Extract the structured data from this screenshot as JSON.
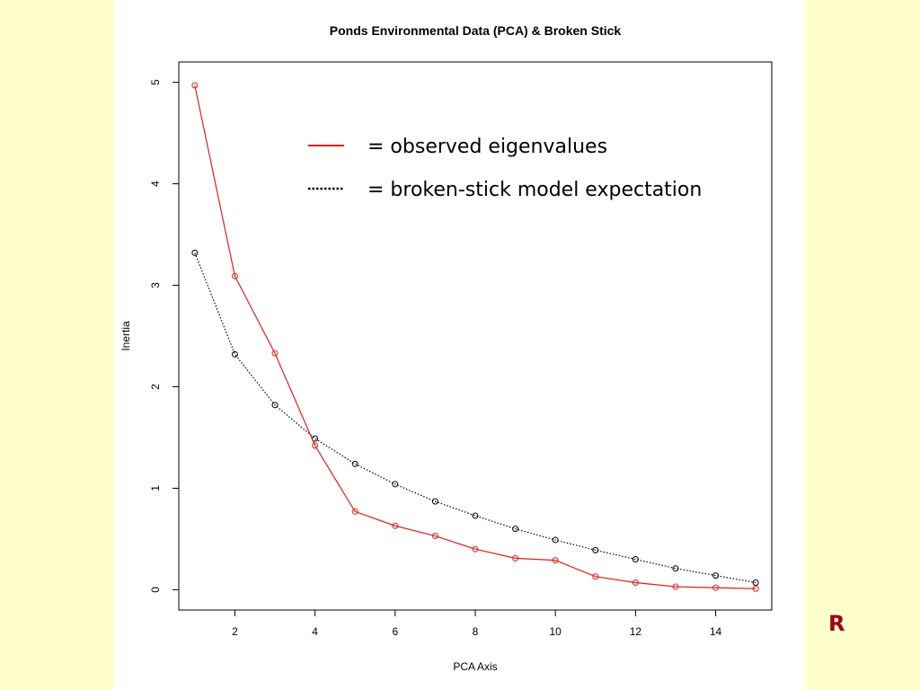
{
  "slide": {
    "corner_letter": "R",
    "background_color": "#ffffcc",
    "panel_color": "#ffffff",
    "letter_color": "#a00020"
  },
  "chart_data": {
    "type": "line",
    "title": "Ponds Environmental Data (PCA) & Broken Stick",
    "xlabel": "PCA Axis",
    "ylabel": "Inertia",
    "xlim": [
      0.6,
      15.4
    ],
    "ylim": [
      -0.2,
      5.2
    ],
    "x_ticks": [
      2,
      4,
      6,
      8,
      10,
      12,
      14
    ],
    "y_ticks": [
      0,
      1,
      2,
      3,
      4,
      5
    ],
    "x": [
      1,
      2,
      3,
      4,
      5,
      6,
      7,
      8,
      9,
      10,
      11,
      12,
      13,
      14,
      15
    ],
    "grid": false,
    "legend_position": "top-center",
    "series": [
      {
        "key": "observed",
        "legend_label": "= observed eigenvalues",
        "color": "#e0201a",
        "line_style": "solid",
        "marker": "circle",
        "values": [
          4.97,
          3.09,
          2.33,
          1.42,
          0.77,
          0.63,
          0.53,
          0.4,
          0.31,
          0.29,
          0.13,
          0.07,
          0.03,
          0.02,
          0.01
        ]
      },
      {
        "key": "broken_stick",
        "legend_label": "= broken-stick model expectation",
        "color": "#000000",
        "line_style": "dotted",
        "marker": "circle",
        "values": [
          3.32,
          2.32,
          1.82,
          1.49,
          1.24,
          1.04,
          0.87,
          0.73,
          0.6,
          0.49,
          0.39,
          0.3,
          0.21,
          0.14,
          0.07
        ]
      }
    ]
  }
}
